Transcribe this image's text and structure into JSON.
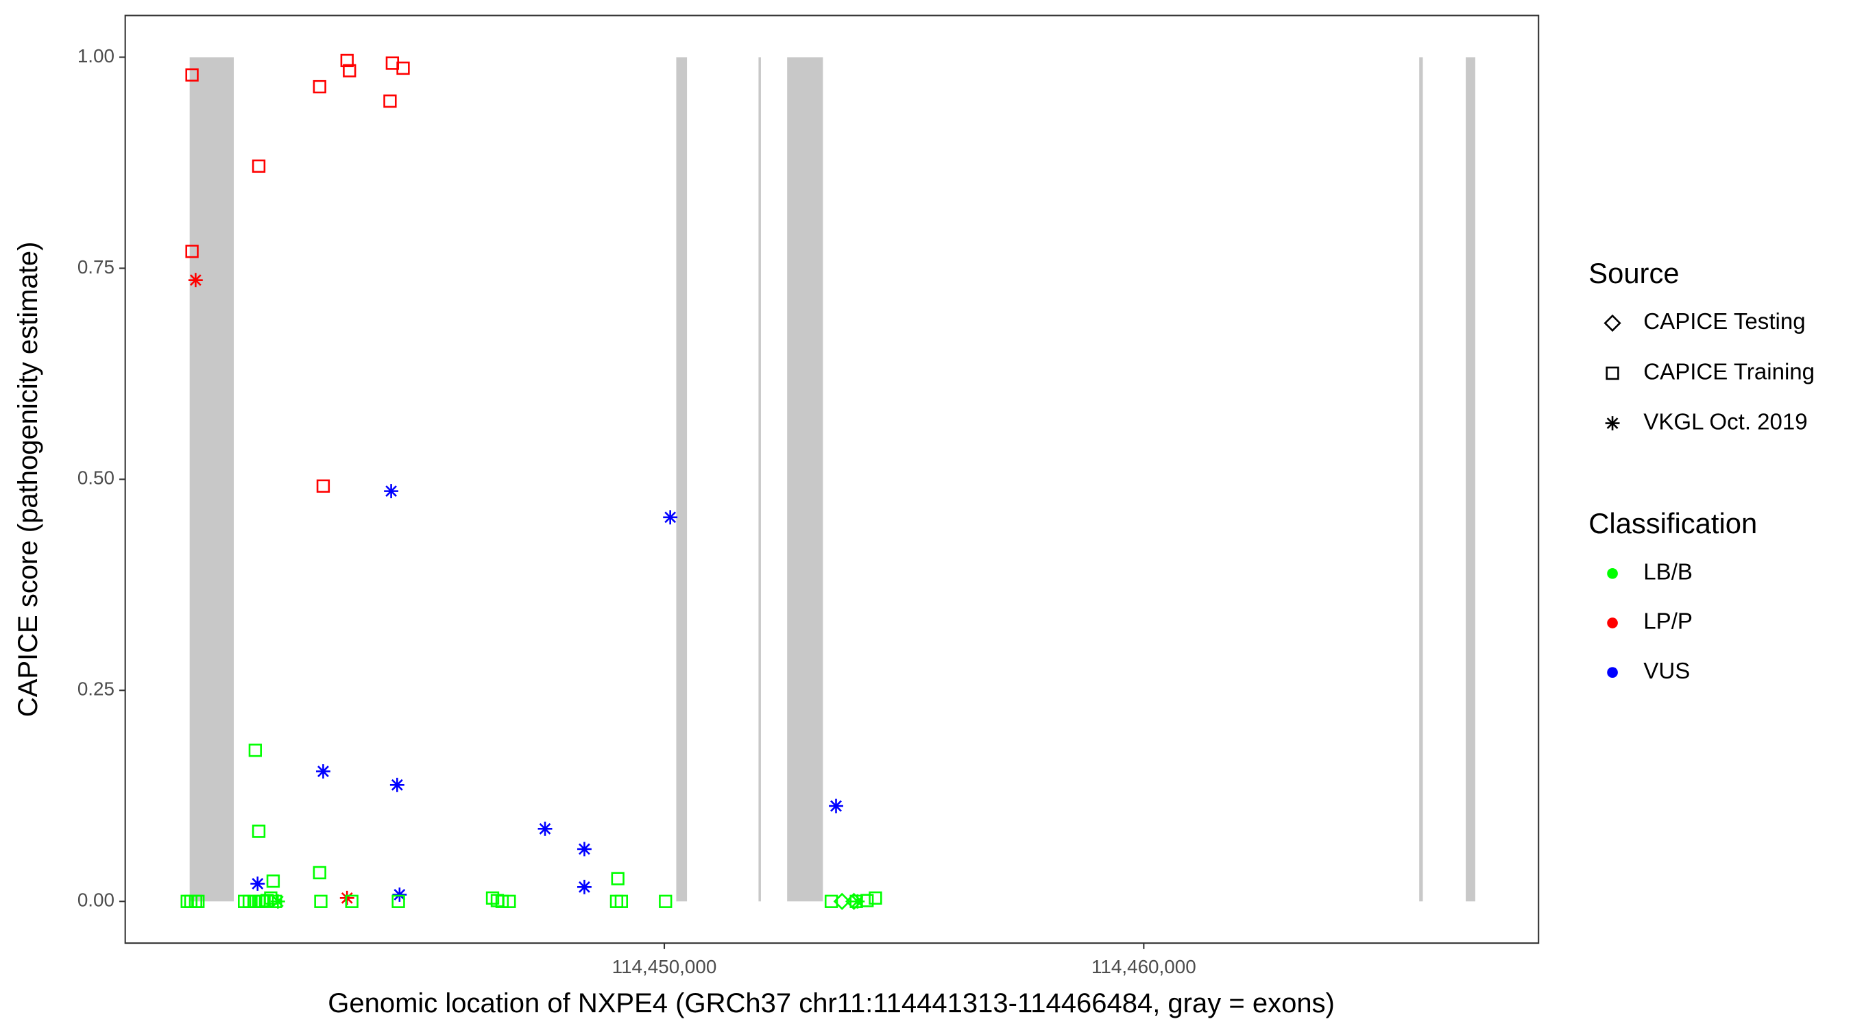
{
  "chart_data": {
    "type": "scatter",
    "xlabel": "Genomic location of NXPE4 (GRCh37 chr11:114441313-114466484, gray = exons)",
    "ylabel": "CAPICE score (pathogenicity estimate)",
    "xlim": [
      114438756,
      114468234
    ],
    "ylim": [
      -0.0494,
      1.0494
    ],
    "xticks": [
      {
        "value": 114450000,
        "label": "114,450,000"
      },
      {
        "value": 114460000,
        "label": "114,460,000"
      }
    ],
    "yticks": [
      {
        "value": 0,
        "label": "0.00"
      },
      {
        "value": 0.25,
        "label": "0.25"
      },
      {
        "value": 0.5,
        "label": "0.50"
      },
      {
        "value": 0.75,
        "label": "0.75"
      },
      {
        "value": 1,
        "label": "1.00"
      }
    ],
    "exon_color": "#c8c8c8",
    "exons": [
      {
        "start": 114440100,
        "end": 114441020
      },
      {
        "start": 114450249,
        "end": 114450473
      },
      {
        "start": 114451965,
        "end": 114452015
      },
      {
        "start": 114452562,
        "end": 114453308
      },
      {
        "start": 114465746,
        "end": 114465821
      },
      {
        "start": 114466716,
        "end": 114466915
      }
    ],
    "source_legend": {
      "title": "Source",
      "entries": [
        {
          "name": "CAPICE Testing",
          "shape": "diamond"
        },
        {
          "name": "CAPICE Training",
          "shape": "square"
        },
        {
          "name": "VKGL Oct. 2019",
          "shape": "asterisk"
        }
      ]
    },
    "classification_legend": {
      "title": "Classification",
      "entries": [
        {
          "name": "LB/B",
          "color": "#00ff00"
        },
        {
          "name": "LP/P",
          "color": "#ff0000"
        },
        {
          "name": "VUS",
          "color": "#0000ff"
        }
      ]
    },
    "points": [
      {
        "x": 114440149,
        "y": 0.979,
        "source": "CAPICE Training",
        "class": "LP/P"
      },
      {
        "x": 114440149,
        "y": 0.77,
        "source": "CAPICE Training",
        "class": "LP/P"
      },
      {
        "x": 114441542,
        "y": 0.871,
        "source": "CAPICE Training",
        "class": "LP/P"
      },
      {
        "x": 114442811,
        "y": 0.965,
        "source": "CAPICE Training",
        "class": "LP/P"
      },
      {
        "x": 114443383,
        "y": 0.996,
        "source": "CAPICE Training",
        "class": "LP/P"
      },
      {
        "x": 114443433,
        "y": 0.984,
        "source": "CAPICE Training",
        "class": "LP/P"
      },
      {
        "x": 114444328,
        "y": 0.993,
        "source": "CAPICE Training",
        "class": "LP/P"
      },
      {
        "x": 114444552,
        "y": 0.987,
        "source": "CAPICE Training",
        "class": "LP/P"
      },
      {
        "x": 114444279,
        "y": 0.948,
        "source": "CAPICE Training",
        "class": "LP/P"
      },
      {
        "x": 114442885,
        "y": 0.492,
        "source": "CAPICE Training",
        "class": "LP/P"
      },
      {
        "x": 114440224,
        "y": 0.736,
        "source": "VKGL Oct. 2019",
        "class": "LP/P"
      },
      {
        "x": 114443383,
        "y": 0.004,
        "source": "VKGL Oct. 2019",
        "class": "LP/P"
      },
      {
        "x": 114444303,
        "y": 0.486,
        "source": "VKGL Oct. 2019",
        "class": "VUS"
      },
      {
        "x": 114450124,
        "y": 0.455,
        "source": "VKGL Oct. 2019",
        "class": "VUS"
      },
      {
        "x": 114442885,
        "y": 0.154,
        "source": "VKGL Oct. 2019",
        "class": "VUS"
      },
      {
        "x": 114444428,
        "y": 0.138,
        "source": "VKGL Oct. 2019",
        "class": "VUS"
      },
      {
        "x": 114447512,
        "y": 0.086,
        "source": "VKGL Oct. 2019",
        "class": "VUS"
      },
      {
        "x": 114448333,
        "y": 0.062,
        "source": "VKGL Oct. 2019",
        "class": "VUS"
      },
      {
        "x": 114448333,
        "y": 0.017,
        "source": "VKGL Oct. 2019",
        "class": "VUS"
      },
      {
        "x": 114441517,
        "y": 0.021,
        "source": "VKGL Oct. 2019",
        "class": "VUS"
      },
      {
        "x": 114444478,
        "y": 0.008,
        "source": "VKGL Oct. 2019",
        "class": "VUS"
      },
      {
        "x": 114453582,
        "y": 0.113,
        "source": "VKGL Oct. 2019",
        "class": "VUS"
      },
      {
        "x": 114441468,
        "y": 0.179,
        "source": "CAPICE Training",
        "class": "LB/B"
      },
      {
        "x": 114441542,
        "y": 0.083,
        "source": "CAPICE Training",
        "class": "LB/B"
      },
      {
        "x": 114441841,
        "y": 0.024,
        "source": "CAPICE Training",
        "class": "LB/B"
      },
      {
        "x": 114442811,
        "y": 0.034,
        "source": "CAPICE Training",
        "class": "LB/B"
      },
      {
        "x": 114449030,
        "y": 0.027,
        "source": "CAPICE Training",
        "class": "LB/B"
      },
      {
        "x": 114440050,
        "y": 0,
        "source": "CAPICE Training",
        "class": "LB/B"
      },
      {
        "x": 114440124,
        "y": 0,
        "source": "CAPICE Training",
        "class": "LB/B"
      },
      {
        "x": 114440224,
        "y": 0,
        "source": "CAPICE Training",
        "class": "LB/B"
      },
      {
        "x": 114440273,
        "y": 0,
        "source": "CAPICE Training",
        "class": "LB/B"
      },
      {
        "x": 114441244,
        "y": 0,
        "source": "CAPICE Training",
        "class": "LB/B"
      },
      {
        "x": 114441343,
        "y": 0,
        "source": "CAPICE Training",
        "class": "LB/B"
      },
      {
        "x": 114441443,
        "y": 0,
        "source": "CAPICE Training",
        "class": "LB/B"
      },
      {
        "x": 114441542,
        "y": 0,
        "source": "CAPICE Training",
        "class": "LB/B"
      },
      {
        "x": 114441617,
        "y": 0,
        "source": "CAPICE Training",
        "class": "LB/B"
      },
      {
        "x": 114441716,
        "y": 0.001,
        "source": "CAPICE Training",
        "class": "LB/B"
      },
      {
        "x": 114441791,
        "y": 0.004,
        "source": "CAPICE Training",
        "class": "LB/B"
      },
      {
        "x": 114441890,
        "y": 0,
        "source": "CAPICE Training",
        "class": "LB/B"
      },
      {
        "x": 114441940,
        "y": 0,
        "source": "VKGL Oct. 2019",
        "class": "LB/B"
      },
      {
        "x": 114442836,
        "y": 0,
        "source": "CAPICE Training",
        "class": "LB/B"
      },
      {
        "x": 114443482,
        "y": 0,
        "source": "CAPICE Training",
        "class": "LB/B"
      },
      {
        "x": 114444453,
        "y": 0,
        "source": "CAPICE Training",
        "class": "LB/B"
      },
      {
        "x": 114446418,
        "y": 0.004,
        "source": "CAPICE Training",
        "class": "LB/B"
      },
      {
        "x": 114446517,
        "y": 0.001,
        "source": "CAPICE Training",
        "class": "LB/B"
      },
      {
        "x": 114446617,
        "y": 0,
        "source": "CAPICE Training",
        "class": "LB/B"
      },
      {
        "x": 114446766,
        "y": 0,
        "source": "CAPICE Training",
        "class": "LB/B"
      },
      {
        "x": 114449005,
        "y": 0,
        "source": "CAPICE Training",
        "class": "LB/B"
      },
      {
        "x": 114449104,
        "y": 0,
        "source": "CAPICE Training",
        "class": "LB/B"
      },
      {
        "x": 114450025,
        "y": 0,
        "source": "CAPICE Training",
        "class": "LB/B"
      },
      {
        "x": 114453483,
        "y": 0,
        "source": "CAPICE Training",
        "class": "LB/B"
      },
      {
        "x": 114453707,
        "y": 0,
        "source": "CAPICE Testing",
        "class": "LB/B"
      },
      {
        "x": 114453955,
        "y": 0,
        "source": "CAPICE Testing",
        "class": "LB/B"
      },
      {
        "x": 114454030,
        "y": 0,
        "source": "VKGL Oct. 2019",
        "class": "LB/B"
      },
      {
        "x": 114454005,
        "y": 0,
        "source": "CAPICE Training",
        "class": "LB/B"
      },
      {
        "x": 114454229,
        "y": 0.001,
        "source": "CAPICE Training",
        "class": "LB/B"
      },
      {
        "x": 114454403,
        "y": 0.004,
        "source": "CAPICE Training",
        "class": "LB/B"
      }
    ]
  }
}
